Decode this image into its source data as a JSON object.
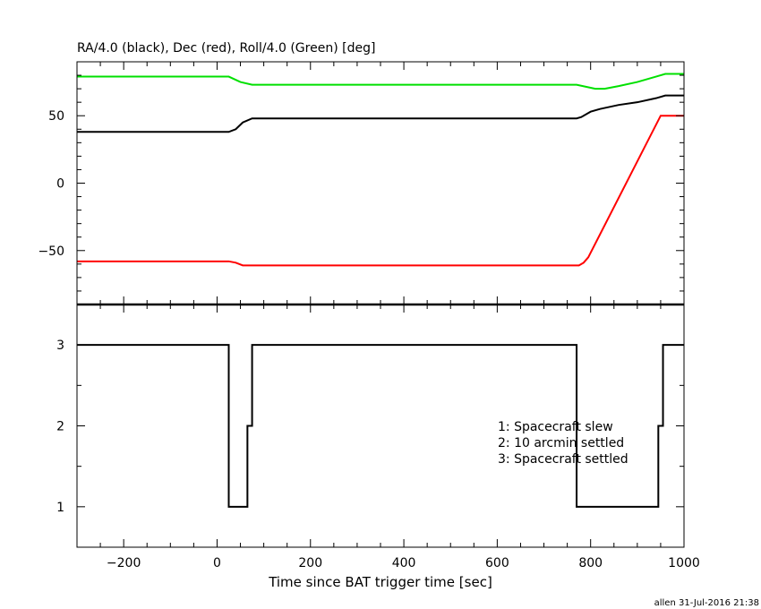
{
  "chart_data": [
    {
      "type": "line",
      "title": "RA/4.0 (black), Dec (red), Roll/4.0 (Green) [deg]",
      "xlim": [
        -300,
        1000
      ],
      "ylim": [
        -90,
        90
      ],
      "yticks": [
        -50,
        0,
        50
      ],
      "grid": false,
      "series": [
        {
          "color": "#00e000",
          "x": [
            -300,
            25,
            50,
            75,
            360,
            400,
            770,
            790,
            810,
            830,
            860,
            900,
            940,
            960,
            1000
          ],
          "y": [
            79,
            79,
            75,
            73,
            73,
            73,
            73,
            71.5,
            70,
            70,
            72,
            75,
            79,
            81,
            81
          ]
        },
        {
          "color": "#000000",
          "x": [
            -300,
            25,
            40,
            55,
            75,
            360,
            400,
            770,
            780,
            800,
            820,
            860,
            900,
            940,
            960,
            1000
          ],
          "y": [
            38,
            38,
            40,
            45,
            48,
            48,
            48,
            48,
            49,
            53,
            55,
            58,
            60,
            63,
            65,
            65
          ]
        },
        {
          "color": "#ff0000",
          "x": [
            -300,
            25,
            40,
            55,
            360,
            400,
            775,
            785,
            795,
            950,
            1000
          ],
          "y": [
            -58,
            -58,
            -59,
            -61,
            -61,
            -61,
            -61,
            -59,
            -55,
            50,
            50
          ]
        }
      ]
    },
    {
      "type": "line",
      "xlabel": "Time since BAT trigger time [sec]",
      "xlim": [
        -300,
        1000
      ],
      "ylim": [
        0.5,
        3.5
      ],
      "xticks": [
        -200,
        0,
        200,
        400,
        600,
        800,
        1000
      ],
      "yticks": [
        1,
        2,
        3
      ],
      "grid": false,
      "step": true,
      "series": [
        {
          "color": "#000000",
          "x": [
            -300,
            25,
            25,
            65,
            65,
            75,
            75,
            770,
            770,
            945,
            945,
            955,
            955,
            1000
          ],
          "y": [
            3,
            3,
            1,
            1,
            2,
            2,
            3,
            3,
            1,
            1,
            2,
            2,
            3,
            3
          ]
        }
      ],
      "annotations": [
        "1: Spacecraft slew",
        "2: 10 arcmin settled",
        "3: Spacecraft settled"
      ]
    }
  ],
  "footer": "allen 31-Jul-2016 21:38"
}
